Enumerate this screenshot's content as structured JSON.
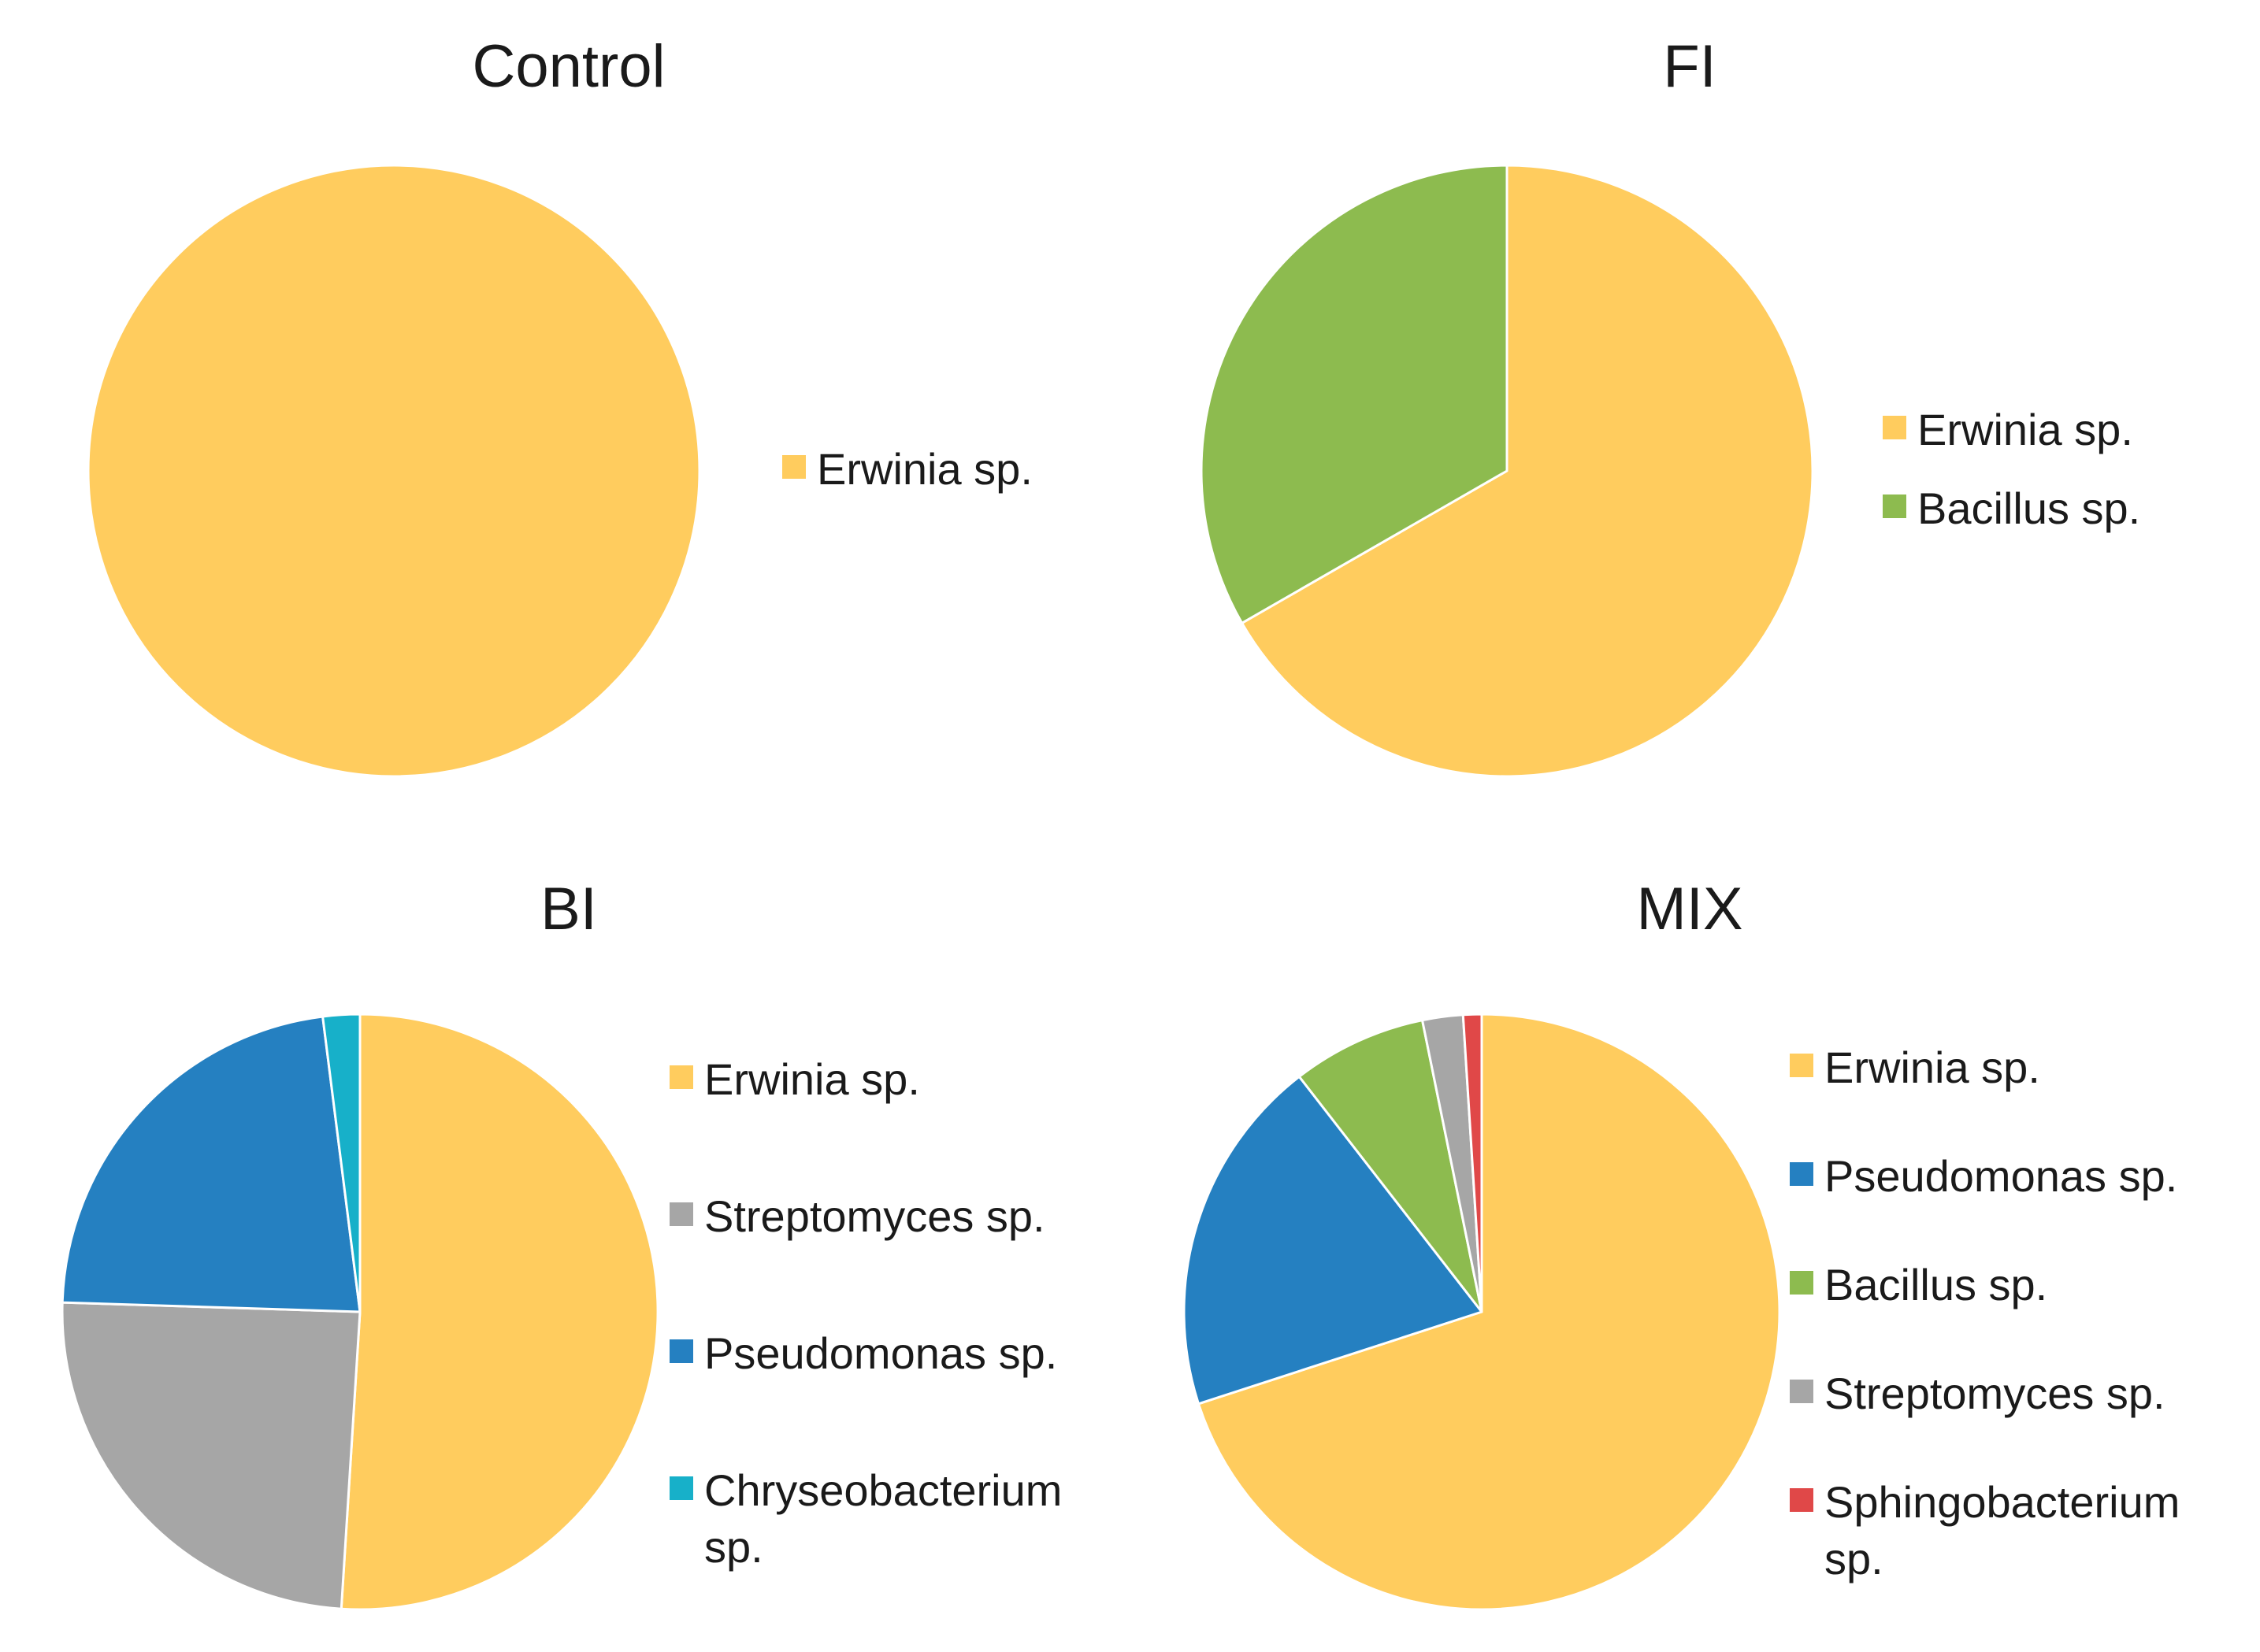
{
  "colors": {
    "erwinia": "#FFCC5E",
    "bacillus": "#8DBB4F",
    "streptomyces": "#A6A6A6",
    "pseudomonas": "#2580C1",
    "chryseobacterium": "#17B0C9",
    "sphingobacterium": "#E04848"
  },
  "chart_data": [
    {
      "type": "pie",
      "title": "Control",
      "slices": [
        {
          "label": "Erwinia sp.",
          "label_lines": [
            "Erwinia sp."
          ],
          "value": 100,
          "color": "#FFCC5E"
        }
      ],
      "legend": [
        "Erwinia sp."
      ]
    },
    {
      "type": "pie",
      "title": "FI",
      "slices": [
        {
          "label": "Erwinia sp.",
          "label_lines": [
            "Erwinia sp."
          ],
          "value": 66.7,
          "color": "#FFCC5E"
        },
        {
          "label": "Bacillus sp.",
          "label_lines": [
            "Bacillus sp."
          ],
          "value": 33.3,
          "color": "#8DBB4F"
        }
      ],
      "legend": [
        "Erwinia sp.",
        "Bacillus sp."
      ]
    },
    {
      "type": "pie",
      "title": "BI",
      "slices": [
        {
          "label": "Erwinia sp.",
          "label_lines": [
            "Erwinia sp."
          ],
          "value": 51,
          "color": "#FFCC5E"
        },
        {
          "label": "Streptomyces sp.",
          "label_lines": [
            "Streptomyces sp."
          ],
          "value": 24.5,
          "color": "#A6A6A6"
        },
        {
          "label": "Pseudomonas sp.",
          "label_lines": [
            "Pseudomonas sp."
          ],
          "value": 22.5,
          "color": "#2580C1"
        },
        {
          "label": "Chryseobacterium sp.",
          "label_lines": [
            "Chryseobacterium",
            "sp."
          ],
          "value": 2,
          "color": "#17B0C9"
        }
      ],
      "legend": [
        "Erwinia sp.",
        "Streptomyces sp.",
        "Pseudomonas sp.",
        "Chryseobacterium sp."
      ]
    },
    {
      "type": "pie",
      "title": "MIX",
      "slices": [
        {
          "label": "Erwinia sp.",
          "label_lines": [
            "Erwinia sp."
          ],
          "value": 70,
          "color": "#FFCC5E"
        },
        {
          "label": "Pseudomonas sp.",
          "label_lines": [
            "Pseudomonas sp."
          ],
          "value": 19.5,
          "color": "#2580C1"
        },
        {
          "label": "Bacillus sp.",
          "label_lines": [
            "Bacillus sp."
          ],
          "value": 7.3,
          "color": "#8DBB4F"
        },
        {
          "label": "Streptomyces sp.",
          "label_lines": [
            "Streptomyces sp."
          ],
          "value": 2.2,
          "color": "#A6A6A6"
        },
        {
          "label": "Sphingobacterium sp.",
          "label_lines": [
            "Sphingobacterium",
            "sp."
          ],
          "value": 1.0,
          "color": "#E04848"
        }
      ],
      "legend": [
        "Erwinia sp.",
        "Pseudomonas sp.",
        "Bacillus sp.",
        "Streptomyces sp.",
        "Sphingobacterium sp."
      ]
    }
  ]
}
